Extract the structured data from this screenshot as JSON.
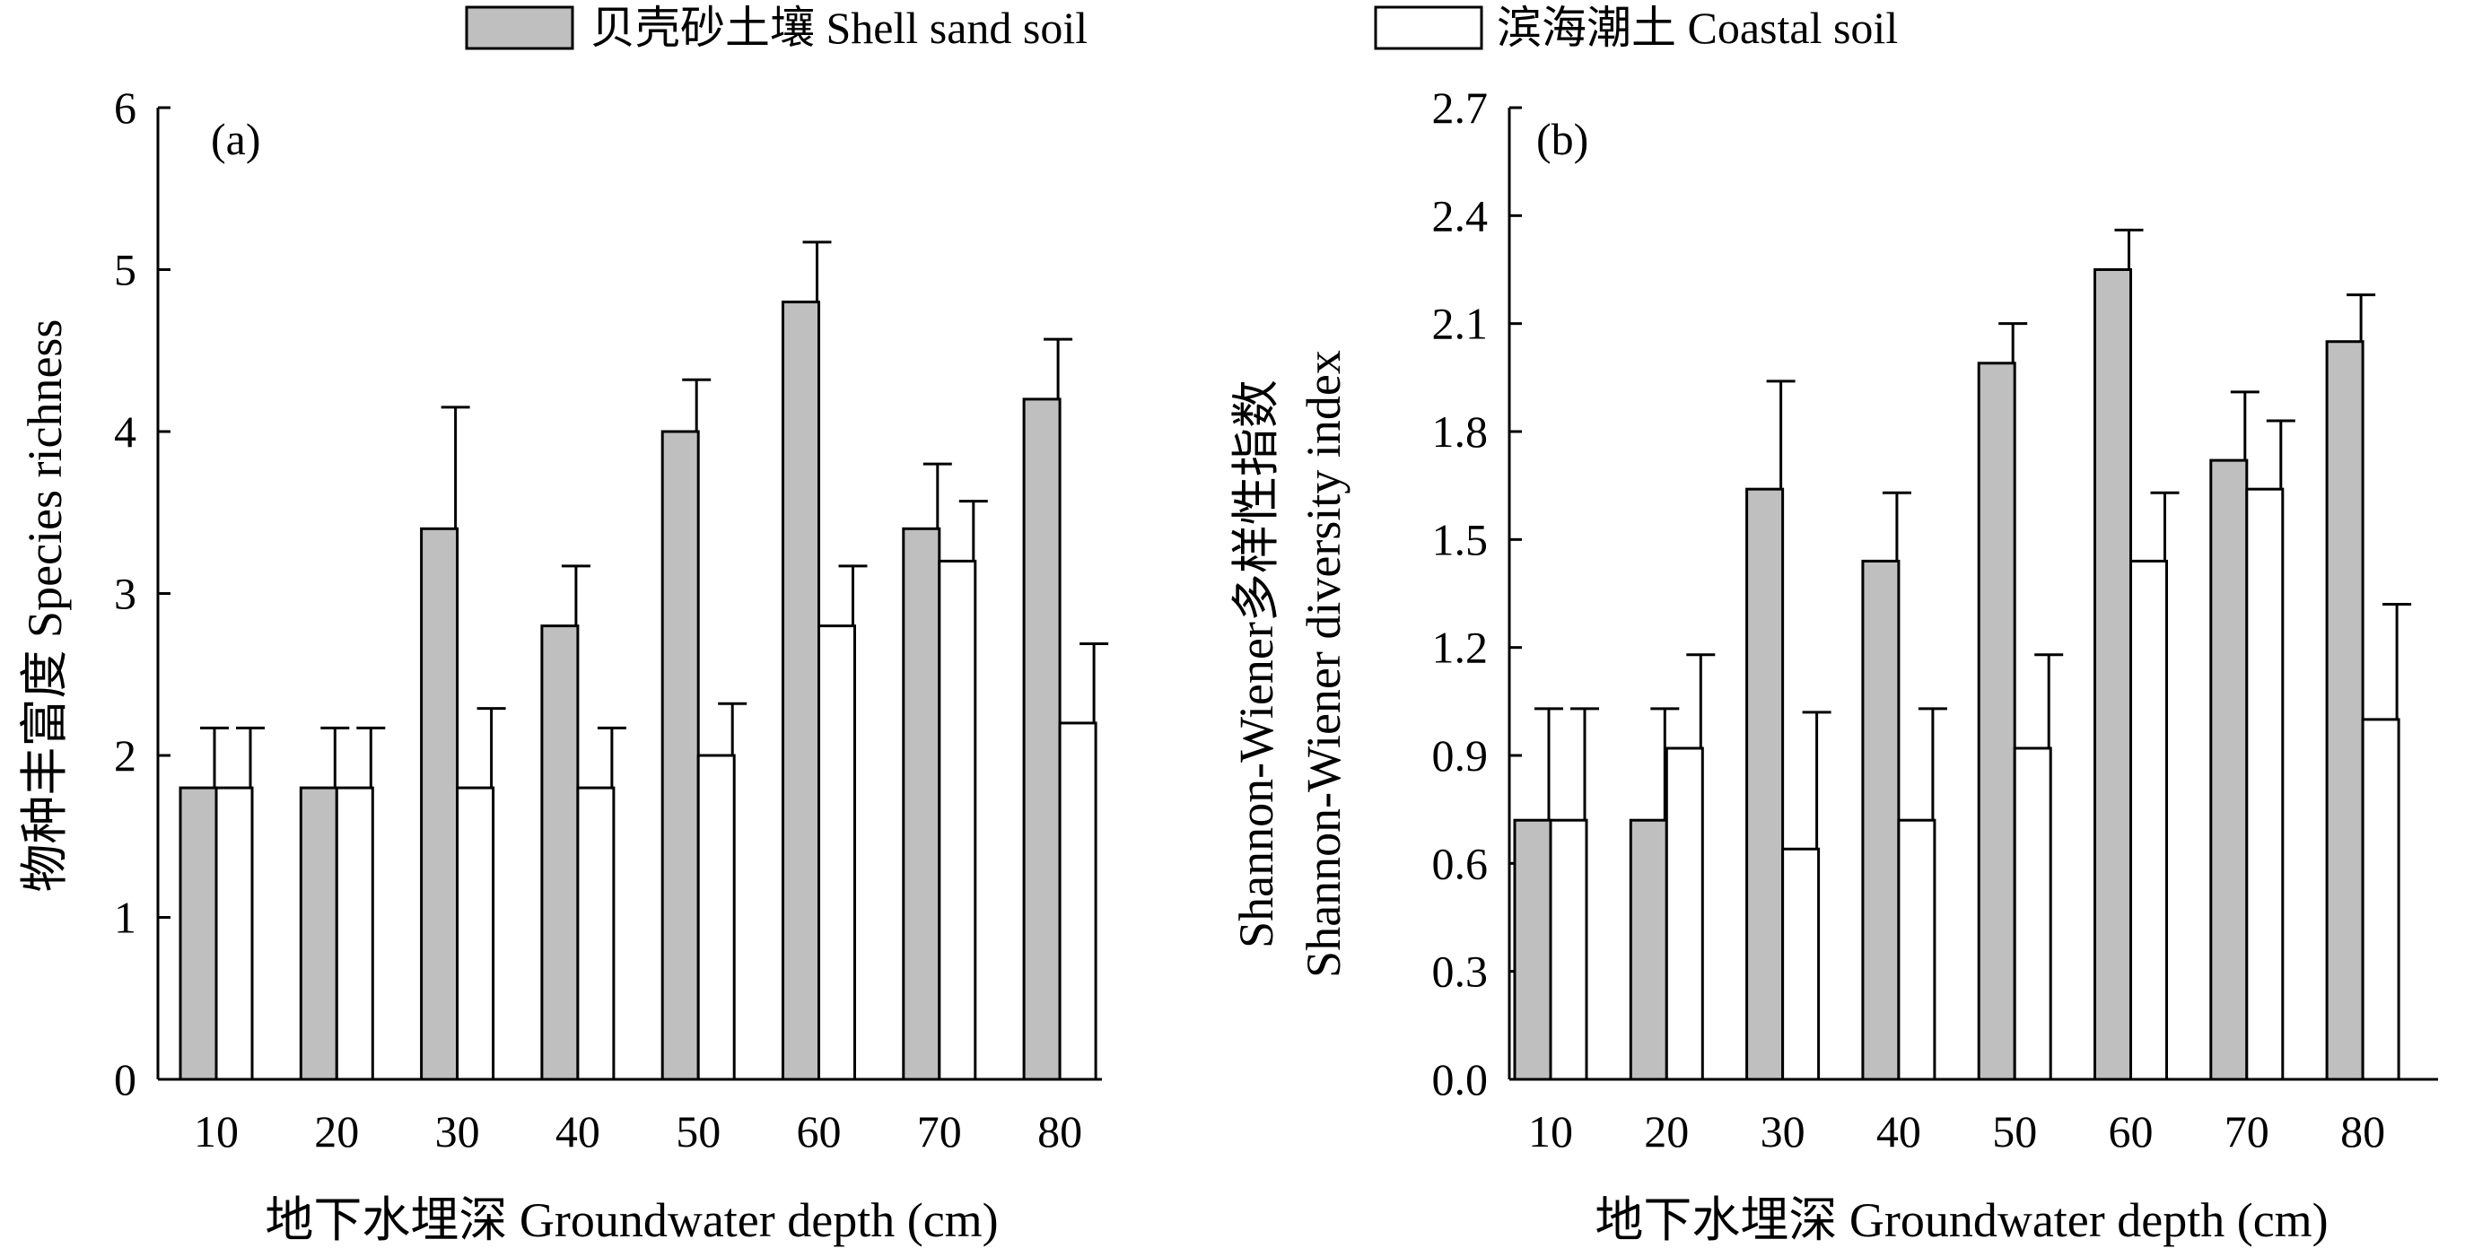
{
  "legend": [
    {
      "label": "贝壳砂土壤 Shell sand soil",
      "color": "#bfbfbf"
    },
    {
      "label": "滨海潮土 Coastal soil",
      "color": "#ffffff"
    }
  ],
  "chart_data": [
    {
      "type": "bar",
      "panel_label": "(a)",
      "categories": [
        "10",
        "20",
        "30",
        "40",
        "50",
        "60",
        "70",
        "80"
      ],
      "xlabel": "地下水埋深 Groundwater depth (cm)",
      "ylabel": [
        "物种丰富度 Species  richness"
      ],
      "ylim": [
        0,
        6
      ],
      "yticks": [
        "0",
        "1",
        "2",
        "3",
        "4",
        "5",
        "6"
      ],
      "grid": false,
      "legend_position": "top",
      "series": [
        {
          "name": "贝壳砂土壤 Shell sand soil",
          "color": "#bfbfbf",
          "values": [
            1.8,
            1.8,
            3.4,
            2.8,
            4.0,
            4.8,
            3.4,
            4.2
          ],
          "errors": [
            0.37,
            0.37,
            0.75,
            0.37,
            0.32,
            0.37,
            0.4,
            0.37
          ]
        },
        {
          "name": "滨海潮土 Coastal soil",
          "color": "#ffffff",
          "values": [
            1.8,
            1.8,
            1.8,
            1.8,
            2.0,
            2.8,
            3.2,
            2.2
          ],
          "errors": [
            0.37,
            0.37,
            0.49,
            0.37,
            0.32,
            0.37,
            0.37,
            0.49
          ]
        }
      ]
    },
    {
      "type": "bar",
      "panel_label": "(b)",
      "categories": [
        "10",
        "20",
        "30",
        "40",
        "50",
        "60",
        "70",
        "80"
      ],
      "xlabel": "地下水埋深 Groundwater depth (cm)",
      "ylabel": [
        "Shannon-Wiener多样性指数",
        "Shannon-Wiener diversity index"
      ],
      "ylim": [
        0,
        2.7
      ],
      "yticks": [
        "0.0",
        "0.3",
        "0.6",
        "0.9",
        "1.2",
        "1.5",
        "1.8",
        "2.1",
        "2.4",
        "2.7"
      ],
      "grid": false,
      "legend_position": "top",
      "series": [
        {
          "name": "贝壳砂土壤 Shell sand soil",
          "color": "#bfbfbf",
          "values": [
            0.72,
            0.72,
            1.64,
            1.44,
            1.99,
            2.25,
            1.72,
            2.05
          ],
          "errors": [
            0.31,
            0.31,
            0.3,
            0.19,
            0.11,
            0.11,
            0.19,
            0.13
          ]
        },
        {
          "name": "滨海潮土 Coastal soil",
          "color": "#ffffff",
          "values": [
            0.72,
            0.92,
            0.64,
            0.72,
            0.92,
            1.44,
            1.64,
            1.0
          ],
          "errors": [
            0.31,
            0.26,
            0.38,
            0.31,
            0.26,
            0.19,
            0.19,
            0.32
          ]
        }
      ]
    }
  ]
}
